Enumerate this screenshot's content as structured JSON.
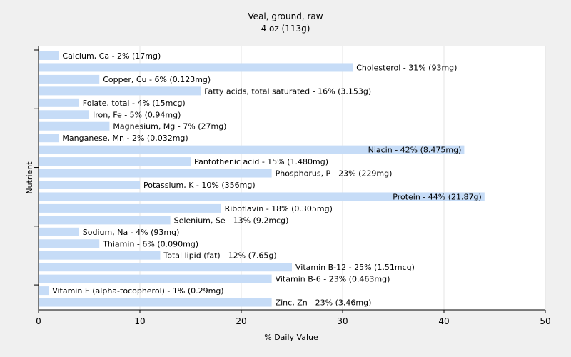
{
  "chart_data": {
    "type": "bar",
    "orientation": "horizontal",
    "title": "Veal, ground, raw",
    "subtitle": "4 oz (113g)",
    "xlabel": "% Daily Value",
    "ylabel": "Nutrient",
    "xlim": [
      0,
      50
    ],
    "xticks": [
      0,
      10,
      20,
      30,
      40,
      50
    ],
    "grid": true,
    "bar_color": "#c6dcf7",
    "categories": [
      "Calcium, Ca",
      "Cholesterol",
      "Copper, Cu",
      "Fatty acids, total saturated",
      "Folate, total",
      "Iron, Fe",
      "Magnesium, Mg",
      "Manganese, Mn",
      "Niacin",
      "Pantothenic acid",
      "Phosphorus, P",
      "Potassium, K",
      "Protein",
      "Riboflavin",
      "Selenium, Se",
      "Sodium, Na",
      "Thiamin",
      "Total lipid (fat)",
      "Vitamin B-12",
      "Vitamin B-6",
      "Vitamin E (alpha-tocopherol)",
      "Zinc, Zn"
    ],
    "values": [
      2,
      31,
      6,
      16,
      4,
      5,
      7,
      2,
      42,
      15,
      23,
      10,
      44,
      18,
      13,
      4,
      6,
      12,
      25,
      23,
      1,
      23
    ],
    "labels": [
      "Calcium, Ca - 2% (17mg)",
      "Cholesterol - 31% (93mg)",
      "Copper, Cu - 6% (0.123mg)",
      "Fatty acids, total saturated - 16% (3.153g)",
      "Folate, total - 4% (15mcg)",
      "Iron, Fe - 5% (0.94mg)",
      "Magnesium, Mg - 7% (27mg)",
      "Manganese, Mn - 2% (0.032mg)",
      "Niacin - 42% (8.475mg)",
      "Pantothenic acid - 15% (1.480mg)",
      "Phosphorus, P - 23% (229mg)",
      "Potassium, K - 10% (356mg)",
      "Protein - 44% (21.87g)",
      "Riboflavin - 18% (0.305mg)",
      "Selenium, Se - 13% (9.2mcg)",
      "Sodium, Na - 4% (93mg)",
      "Thiamin - 6% (0.090mg)",
      "Total lipid (fat) - 12% (7.65g)",
      "Vitamin B-12 - 25% (1.51mcg)",
      "Vitamin B-6 - 23% (0.463mg)",
      "Vitamin E (alpha-tocopherol) - 1% (0.29mg)",
      "Zinc, Zn - 23% (3.46mg)"
    ]
  }
}
